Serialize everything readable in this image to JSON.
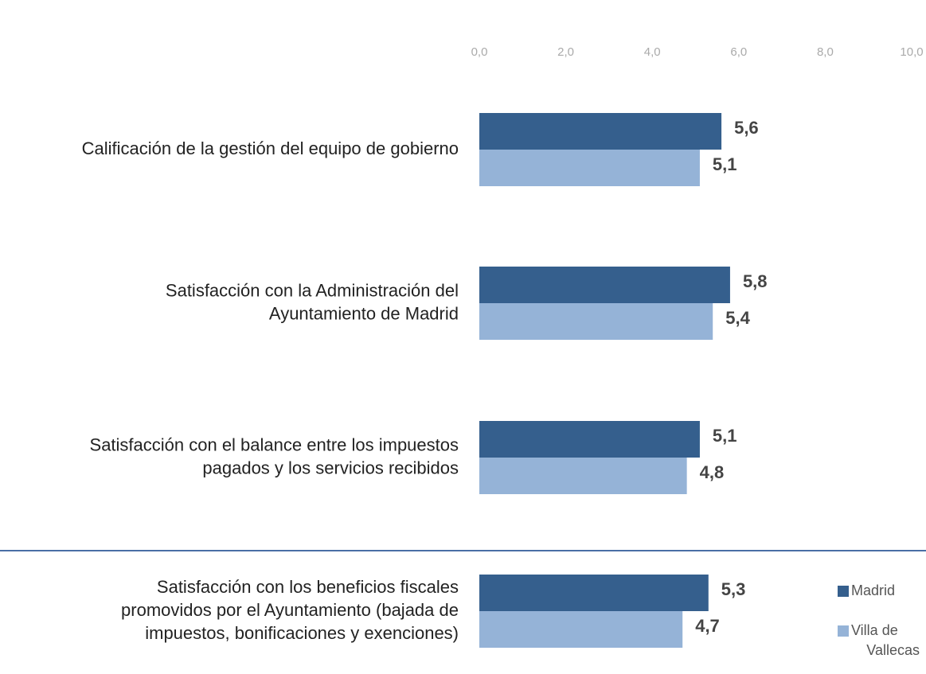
{
  "chart_data": {
    "type": "bar",
    "orientation": "horizontal",
    "categories": [
      [
        "Calificación de la gestión del equipo de gobierno"
      ],
      [
        "Satisfacción con la Administración del",
        "Ayuntamiento de Madrid"
      ],
      [
        "Satisfacción con el balance entre los impuestos",
        "pagados y los servicios recibidos"
      ],
      [
        "Satisfacción con los beneficios fiscales",
        "promovidos por el Ayuntamiento (bajada de",
        "impuestos, bonificaciones y exenciones)"
      ]
    ],
    "series": [
      {
        "name": "Madrid",
        "color": "#355f8d",
        "values": [
          5.6,
          5.8,
          5.1,
          5.3
        ],
        "value_labels": [
          "5,6",
          "5,8",
          "5,1",
          "5,3"
        ]
      },
      {
        "name": [
          "Villa de",
          "Vallecas"
        ],
        "color": "#95b3d7",
        "values": [
          5.1,
          5.4,
          4.8,
          4.7
        ],
        "value_labels": [
          "5,1",
          "5,4",
          "4,8",
          "4,7"
        ]
      }
    ],
    "xlim": [
      0,
      10
    ],
    "xticks": [
      {
        "value": 0,
        "label": "0,0"
      },
      {
        "value": 2,
        "label": "2,0"
      },
      {
        "value": 4,
        "label": "4,0"
      },
      {
        "value": 6,
        "label": "6,0"
      },
      {
        "value": 8,
        "label": "8,0"
      },
      {
        "value": 10,
        "label": "10,0"
      }
    ],
    "legend": "bottom-right"
  }
}
